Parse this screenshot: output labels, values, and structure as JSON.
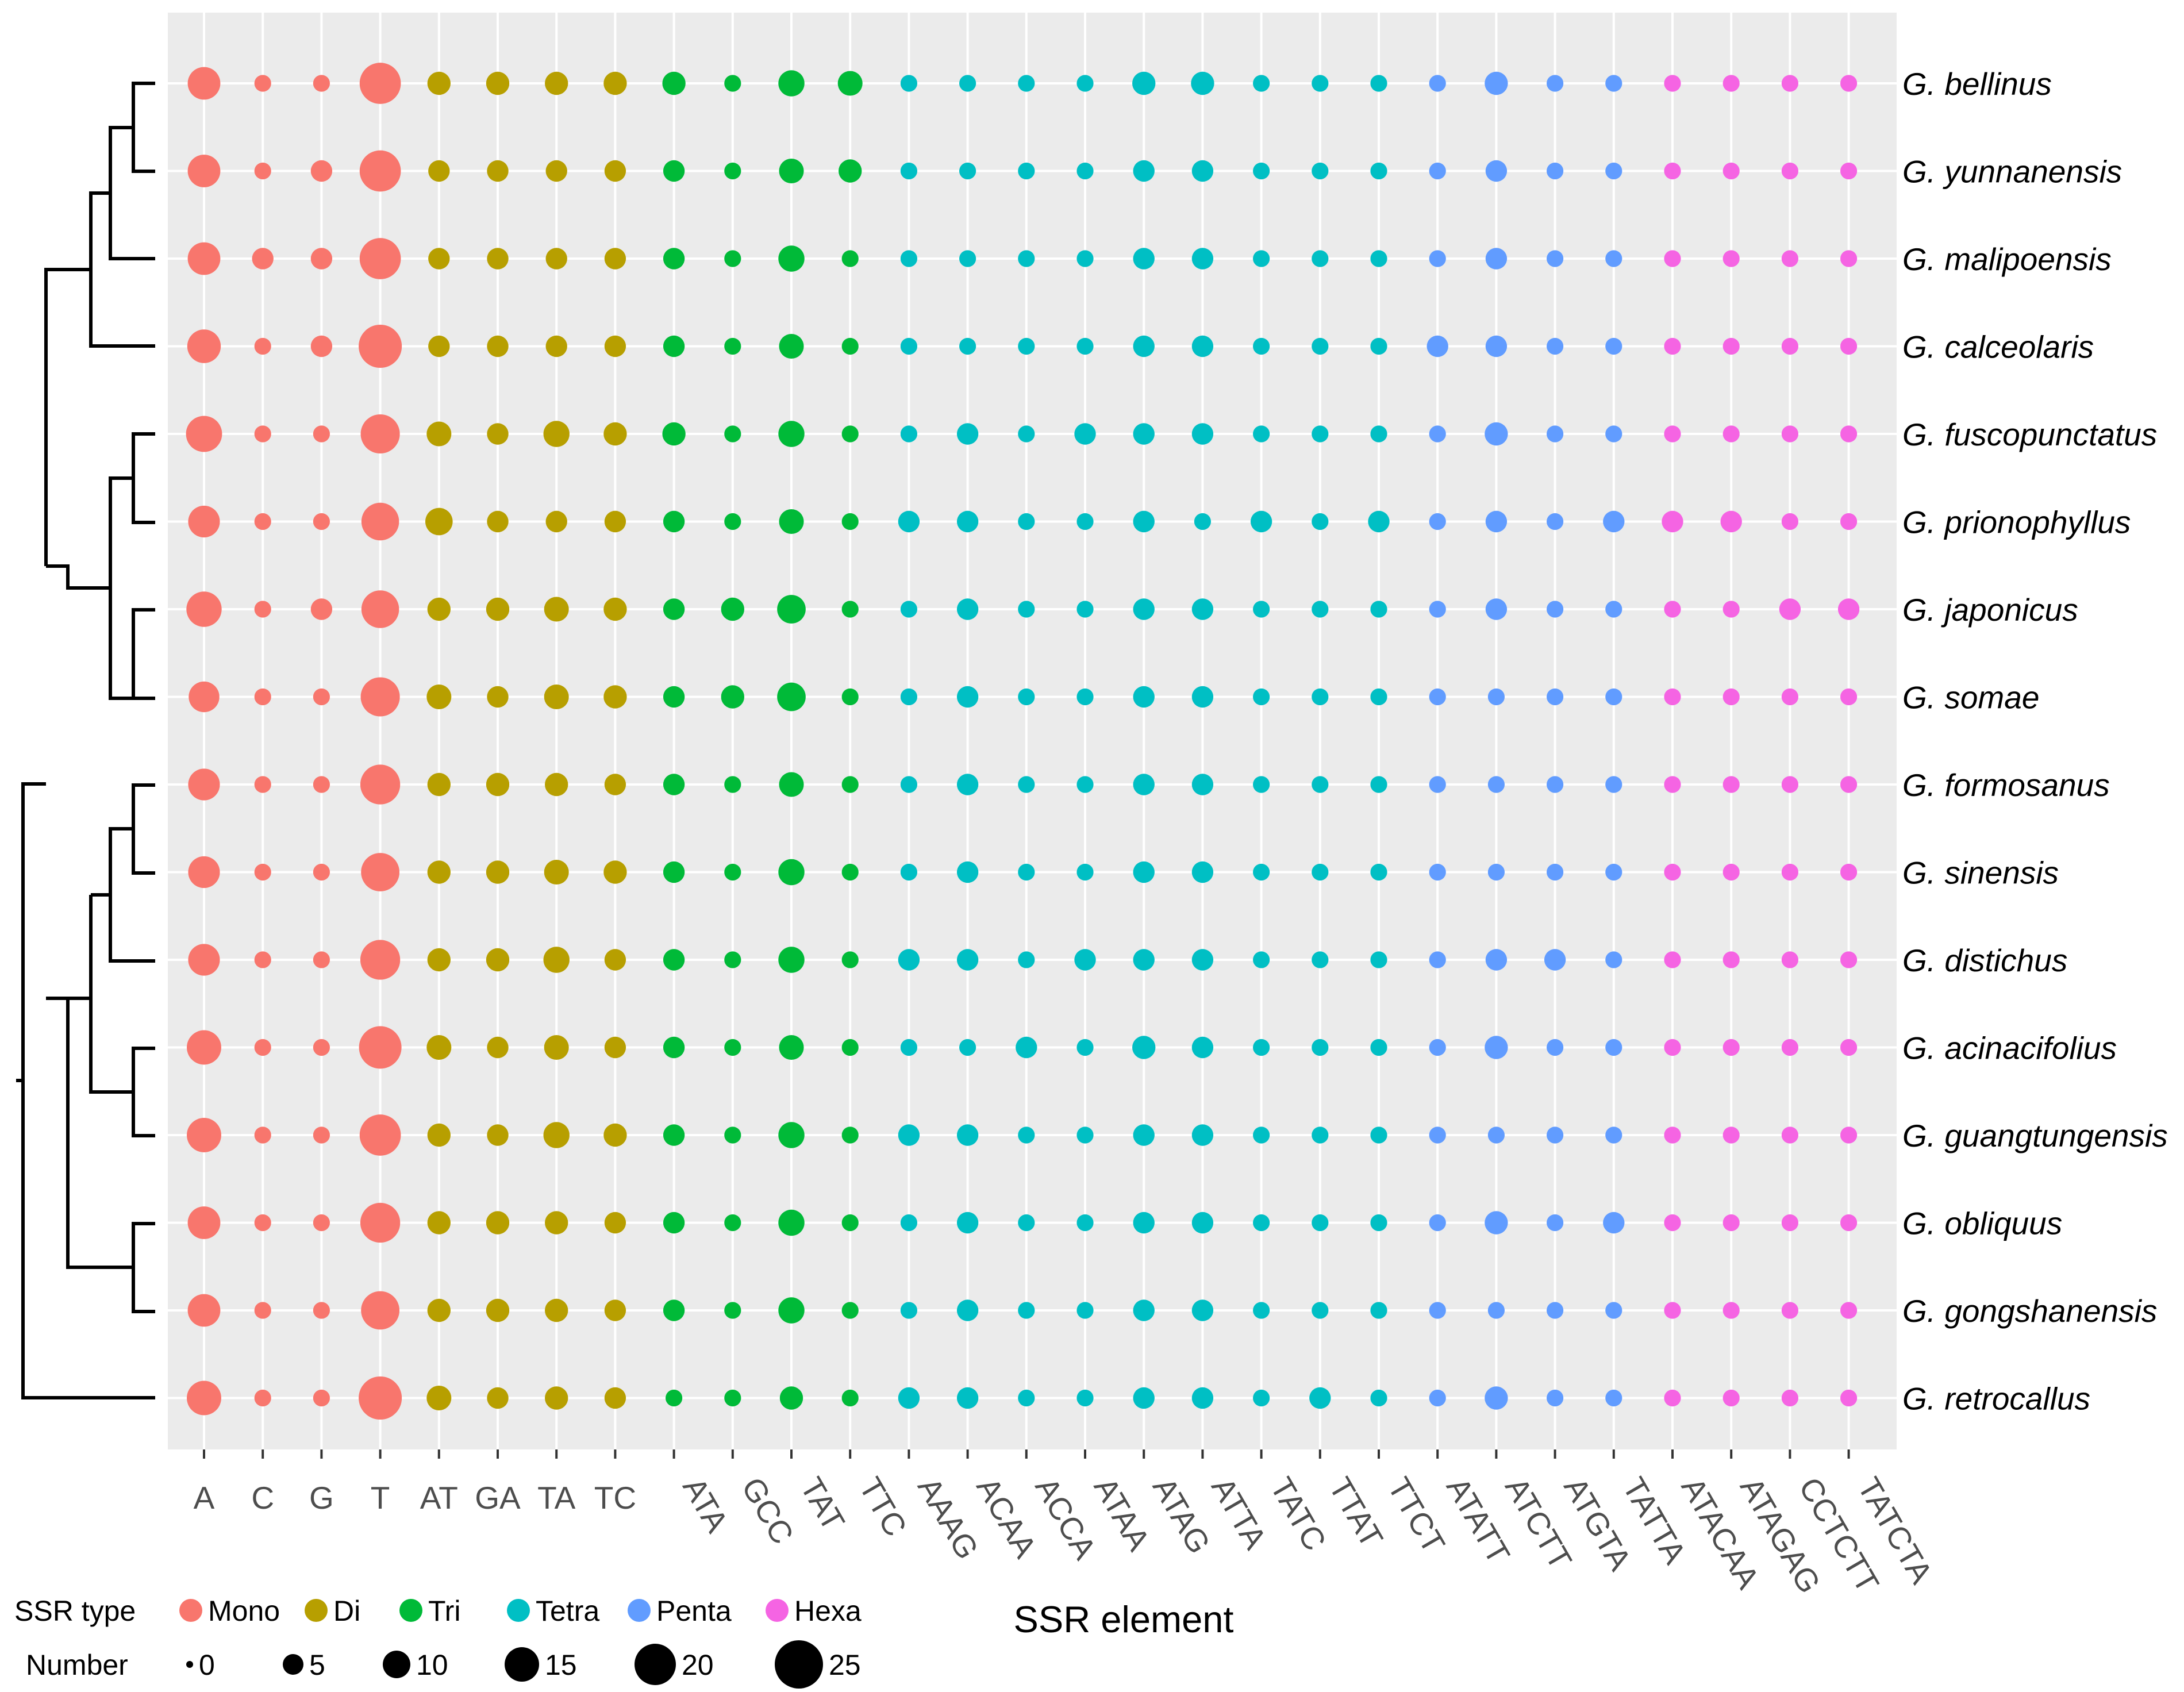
{
  "chart_data": {
    "type": "scatter",
    "title": "",
    "xlabel": "SSR element",
    "ylabel": "",
    "grid": true,
    "legend_position": "bottom",
    "elements": [
      "A",
      "C",
      "G",
      "T",
      "AT",
      "GA",
      "TA",
      "TC",
      "ATA",
      "GCC",
      "TAT",
      "TTC",
      "AAAG",
      "ACAA",
      "ACCA",
      "ATAA",
      "ATAG",
      "ATTA",
      "TATC",
      "TTAT",
      "TTCT",
      "ATATT",
      "ATCTT",
      "ATGTA",
      "TATTA",
      "ATACAA",
      "ATAGAG",
      "CCTCTT",
      "TATCTA"
    ],
    "element_types": [
      "Mono",
      "Mono",
      "Mono",
      "Mono",
      "Di",
      "Di",
      "Di",
      "Di",
      "Tri",
      "Tri",
      "Tri",
      "Tri",
      "Tetra",
      "Tetra",
      "Tetra",
      "Tetra",
      "Tetra",
      "Tetra",
      "Tetra",
      "Tetra",
      "Tetra",
      "Penta",
      "Penta",
      "Penta",
      "Penta",
      "Hexa",
      "Hexa",
      "Hexa",
      "Hexa"
    ],
    "species": [
      "G. bellinus",
      "G. yunnanensis",
      "G. malipoensis",
      "G. calceolaris",
      "G. fuscopunctatus",
      "G. prionophyllus",
      "G. japonicus",
      "G. somae",
      "G. formosanus",
      "G. sinensis",
      "G. distichus",
      "G. acinacifolius",
      "G. guangtungensis",
      "G. obliquus",
      "G. gongshanensis",
      "G. retrocallus"
    ],
    "values": [
      [
        12,
        1,
        1,
        23,
        4,
        4,
        4,
        4,
        4,
        1,
        6,
        5,
        1,
        1,
        1,
        1,
        4,
        4,
        1,
        1,
        1,
        1,
        4,
        1,
        1,
        1,
        1,
        1,
        1
      ],
      [
        12,
        1,
        3,
        23,
        3,
        3,
        3,
        3,
        3,
        1,
        5,
        4,
        1,
        1,
        1,
        1,
        3,
        3,
        1,
        1,
        1,
        1,
        3,
        1,
        1,
        1,
        1,
        1,
        1
      ],
      [
        12,
        3,
        3,
        23,
        3,
        3,
        3,
        3,
        3,
        1,
        6,
        1,
        1,
        1,
        1,
        1,
        3,
        3,
        1,
        1,
        1,
        1,
        3,
        1,
        1,
        1,
        1,
        1,
        1
      ],
      [
        13,
        1,
        3,
        26,
        3,
        3,
        3,
        3,
        3,
        1,
        5,
        1,
        1,
        1,
        1,
        1,
        3,
        3,
        1,
        1,
        1,
        3,
        3,
        1,
        1,
        1,
        1,
        1,
        1
      ],
      [
        16,
        1,
        1,
        20,
        5,
        3,
        6,
        4,
        4,
        1,
        6,
        1,
        1,
        3,
        1,
        3,
        3,
        3,
        1,
        1,
        1,
        1,
        4,
        1,
        1,
        1,
        1,
        1,
        1
      ],
      [
        11,
        1,
        1,
        18,
        7,
        3,
        3,
        3,
        3,
        1,
        5,
        1,
        3,
        3,
        1,
        1,
        3,
        1,
        3,
        1,
        3,
        1,
        3,
        1,
        3,
        3,
        3,
        1,
        1
      ],
      [
        15,
        1,
        3,
        18,
        4,
        4,
        5,
        4,
        3,
        4,
        8,
        1,
        1,
        3,
        1,
        1,
        3,
        3,
        1,
        1,
        1,
        1,
        3,
        1,
        1,
        1,
        1,
        3,
        3
      ],
      [
        10,
        1,
        1,
        20,
        5,
        3,
        5,
        4,
        3,
        4,
        8,
        1,
        1,
        3,
        1,
        1,
        3,
        3,
        1,
        1,
        1,
        1,
        1,
        1,
        1,
        1,
        1,
        1,
        1
      ],
      [
        11,
        1,
        1,
        21,
        4,
        4,
        4,
        3,
        3,
        1,
        5,
        1,
        1,
        3,
        1,
        1,
        3,
        3,
        1,
        1,
        1,
        1,
        1,
        1,
        1,
        1,
        1,
        1,
        1
      ],
      [
        11,
        1,
        1,
        19,
        4,
        4,
        5,
        4,
        3,
        1,
        6,
        1,
        1,
        3,
        1,
        1,
        3,
        3,
        1,
        1,
        1,
        1,
        1,
        1,
        1,
        1,
        1,
        1,
        1
      ],
      [
        11,
        1,
        1,
        21,
        4,
        4,
        6,
        3,
        3,
        1,
        6,
        1,
        3,
        3,
        1,
        3,
        3,
        3,
        1,
        1,
        1,
        1,
        3,
        3,
        1,
        1,
        1,
        1,
        1
      ],
      [
        14,
        1,
        1,
        25,
        5,
        3,
        5,
        3,
        3,
        1,
        5,
        1,
        1,
        1,
        3,
        1,
        4,
        3,
        1,
        1,
        1,
        1,
        4,
        1,
        1,
        1,
        1,
        1,
        1
      ],
      [
        14,
        1,
        1,
        23,
        4,
        3,
        6,
        4,
        3,
        1,
        6,
        1,
        3,
        3,
        1,
        1,
        3,
        3,
        1,
        1,
        1,
        1,
        1,
        1,
        1,
        1,
        1,
        1,
        1
      ],
      [
        12,
        1,
        1,
        21,
        4,
        4,
        4,
        3,
        3,
        1,
        6,
        1,
        1,
        3,
        1,
        1,
        3,
        3,
        1,
        1,
        1,
        1,
        4,
        1,
        3,
        1,
        1,
        1,
        1
      ],
      [
        12,
        1,
        1,
        19,
        4,
        4,
        4,
        3,
        3,
        1,
        6,
        1,
        1,
        3,
        1,
        1,
        3,
        3,
        1,
        1,
        1,
        1,
        1,
        1,
        1,
        1,
        1,
        1,
        1
      ],
      [
        14,
        1,
        1,
        26,
        5,
        3,
        4,
        3,
        1,
        1,
        4,
        1,
        3,
        3,
        1,
        1,
        3,
        3,
        1,
        3,
        1,
        1,
        4,
        1,
        1,
        1,
        1,
        1,
        1
      ]
    ],
    "type_colors": {
      "Mono": "#F8766D",
      "Di": "#B79F00",
      "Tri": "#00BA38",
      "Tetra": "#00BFC4",
      "Penta": "#619CFF",
      "Hexa": "#F564E3"
    },
    "legend": {
      "type_title": "SSR type",
      "types": [
        "Mono",
        "Di",
        "Tri",
        "Tetra",
        "Penta",
        "Hexa"
      ],
      "size_title": "Number",
      "sizes": [
        0,
        5,
        10,
        15,
        20,
        25
      ]
    }
  }
}
